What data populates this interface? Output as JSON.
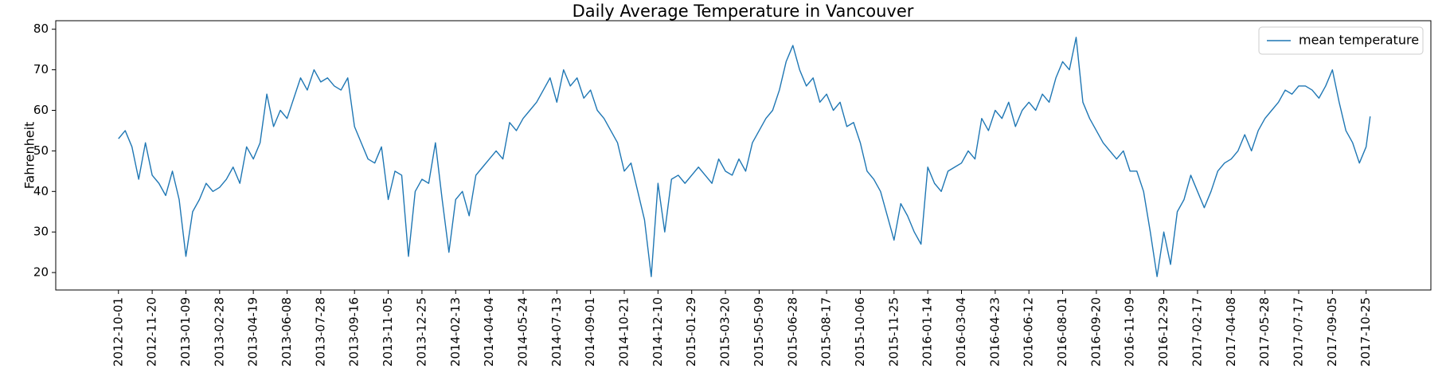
{
  "chart_data": {
    "type": "line",
    "title": "Daily Average Temperature in Vancouver",
    "y_label": "Fahrenheit",
    "legend": "upper right",
    "grid": false,
    "xlim": [
      "2012-06-30",
      "2018-01-29"
    ],
    "ylim": [
      15.7,
      82.1
    ],
    "yticks": [
      20,
      30,
      40,
      50,
      60,
      70,
      80
    ],
    "xticks": [
      "2012-10-01",
      "2012-11-20",
      "2013-01-09",
      "2013-02-28",
      "2013-04-19",
      "2013-06-08",
      "2013-07-28",
      "2013-09-16",
      "2013-11-05",
      "2013-12-25",
      "2014-02-13",
      "2014-04-04",
      "2014-05-24",
      "2014-07-13",
      "2014-09-01",
      "2014-10-21",
      "2014-12-10",
      "2015-01-29",
      "2015-03-20",
      "2015-05-09",
      "2015-06-28",
      "2015-08-17",
      "2015-10-06",
      "2015-11-25",
      "2016-01-14",
      "2016-03-04",
      "2016-04-23",
      "2016-06-12",
      "2016-08-01",
      "2016-09-20",
      "2016-11-09",
      "2016-12-29",
      "2017-02-17",
      "2017-04-08",
      "2017-05-28",
      "2017-07-17",
      "2017-09-05",
      "2017-10-25"
    ],
    "x": [
      "2012-10-01",
      "2012-10-11",
      "2012-10-21",
      "2012-10-31",
      "2012-11-10",
      "2012-11-20",
      "2012-11-30",
      "2012-12-10",
      "2012-12-20",
      "2012-12-30",
      "2013-01-09",
      "2013-01-19",
      "2013-01-29",
      "2013-02-08",
      "2013-02-18",
      "2013-02-28",
      "2013-03-10",
      "2013-03-20",
      "2013-03-30",
      "2013-04-09",
      "2013-04-19",
      "2013-04-29",
      "2013-05-09",
      "2013-05-19",
      "2013-05-29",
      "2013-06-08",
      "2013-06-18",
      "2013-06-28",
      "2013-07-08",
      "2013-07-18",
      "2013-07-28",
      "2013-08-07",
      "2013-08-17",
      "2013-08-27",
      "2013-09-06",
      "2013-09-16",
      "2013-09-26",
      "2013-10-06",
      "2013-10-16",
      "2013-10-26",
      "2013-11-05",
      "2013-11-15",
      "2013-11-25",
      "2013-12-05",
      "2013-12-15",
      "2013-12-25",
      "2014-01-04",
      "2014-01-14",
      "2014-01-24",
      "2014-02-03",
      "2014-02-13",
      "2014-02-23",
      "2014-03-05",
      "2014-03-15",
      "2014-03-25",
      "2014-04-04",
      "2014-04-14",
      "2014-04-24",
      "2014-05-04",
      "2014-05-14",
      "2014-05-24",
      "2014-06-03",
      "2014-06-13",
      "2014-06-23",
      "2014-07-03",
      "2014-07-13",
      "2014-07-23",
      "2014-08-02",
      "2014-08-12",
      "2014-08-22",
      "2014-09-01",
      "2014-09-11",
      "2014-09-21",
      "2014-10-01",
      "2014-10-11",
      "2014-10-21",
      "2014-10-31",
      "2014-11-10",
      "2014-11-20",
      "2014-11-30",
      "2014-12-10",
      "2014-12-20",
      "2014-12-30",
      "2015-01-09",
      "2015-01-19",
      "2015-01-29",
      "2015-02-08",
      "2015-02-18",
      "2015-02-28",
      "2015-03-10",
      "2015-03-20",
      "2015-03-30",
      "2015-04-09",
      "2015-04-19",
      "2015-04-29",
      "2015-05-09",
      "2015-05-19",
      "2015-05-29",
      "2015-06-08",
      "2015-06-18",
      "2015-06-28",
      "2015-07-08",
      "2015-07-18",
      "2015-07-28",
      "2015-08-07",
      "2015-08-17",
      "2015-08-27",
      "2015-09-06",
      "2015-09-16",
      "2015-09-26",
      "2015-10-06",
      "2015-10-16",
      "2015-10-26",
      "2015-11-05",
      "2015-11-15",
      "2015-11-25",
      "2015-12-05",
      "2015-12-15",
      "2015-12-25",
      "2016-01-04",
      "2016-01-14",
      "2016-01-24",
      "2016-02-03",
      "2016-02-13",
      "2016-02-23",
      "2016-03-04",
      "2016-03-14",
      "2016-03-24",
      "2016-04-03",
      "2016-04-13",
      "2016-04-23",
      "2016-05-03",
      "2016-05-13",
      "2016-05-23",
      "2016-06-02",
      "2016-06-12",
      "2016-06-22",
      "2016-07-02",
      "2016-07-12",
      "2016-07-22",
      "2016-08-01",
      "2016-08-11",
      "2016-08-21",
      "2016-08-31",
      "2016-09-10",
      "2016-09-20",
      "2016-09-30",
      "2016-10-10",
      "2016-10-20",
      "2016-10-30",
      "2016-11-09",
      "2016-11-19",
      "2016-11-29",
      "2016-12-09",
      "2016-12-19",
      "2016-12-29",
      "2017-01-08",
      "2017-01-18",
      "2017-01-28",
      "2017-02-07",
      "2017-02-17",
      "2017-02-27",
      "2017-03-09",
      "2017-03-19",
      "2017-03-29",
      "2017-04-08",
      "2017-04-18",
      "2017-04-28",
      "2017-05-08",
      "2017-05-18",
      "2017-05-28",
      "2017-06-07",
      "2017-06-17",
      "2017-06-27",
      "2017-07-07",
      "2017-07-17",
      "2017-07-27",
      "2017-08-06",
      "2017-08-16",
      "2017-08-26",
      "2017-09-05",
      "2017-09-15",
      "2017-09-25",
      "2017-10-05",
      "2017-10-15",
      "2017-10-25",
      "2017-10-31"
    ],
    "series": [
      {
        "name": "mean temperature",
        "color": "#1f77b4",
        "values": [
          53,
          55,
          51,
          43,
          52,
          44,
          42,
          39,
          45,
          38,
          24,
          35,
          38,
          42,
          40,
          41,
          43,
          46,
          42,
          51,
          48,
          52,
          64,
          56,
          60,
          58,
          63,
          68,
          65,
          70,
          67,
          68,
          66,
          65,
          68,
          56,
          52,
          48,
          47,
          51,
          38,
          45,
          44,
          24,
          40,
          43,
          42,
          52,
          38,
          25,
          38,
          40,
          34,
          44,
          46,
          48,
          50,
          48,
          57,
          55,
          58,
          60,
          62,
          65,
          68,
          62,
          70,
          66,
          68,
          63,
          65,
          60,
          58,
          55,
          52,
          45,
          47,
          40,
          33,
          19,
          42,
          30,
          43,
          44,
          42,
          44,
          46,
          44,
          42,
          48,
          45,
          44,
          48,
          45,
          52,
          55,
          58,
          60,
          65,
          72,
          76,
          70,
          66,
          68,
          62,
          64,
          60,
          62,
          56,
          57,
          52,
          45,
          43,
          40,
          34,
          28,
          37,
          34,
          30,
          27,
          46,
          42,
          40,
          45,
          46,
          47,
          50,
          48,
          58,
          55,
          60,
          58,
          62,
          56,
          60,
          62,
          60,
          64,
          62,
          68,
          72,
          70,
          78,
          62,
          58,
          55,
          52,
          50,
          48,
          50,
          45,
          45,
          40,
          30,
          19,
          30,
          22,
          35,
          38,
          44,
          40,
          36,
          40,
          45,
          47,
          48,
          50,
          54,
          50,
          55,
          58,
          60,
          62,
          65,
          64,
          66,
          66,
          65,
          63,
          66,
          70,
          62,
          55,
          52,
          47,
          51,
          58.5
        ]
      }
    ]
  }
}
